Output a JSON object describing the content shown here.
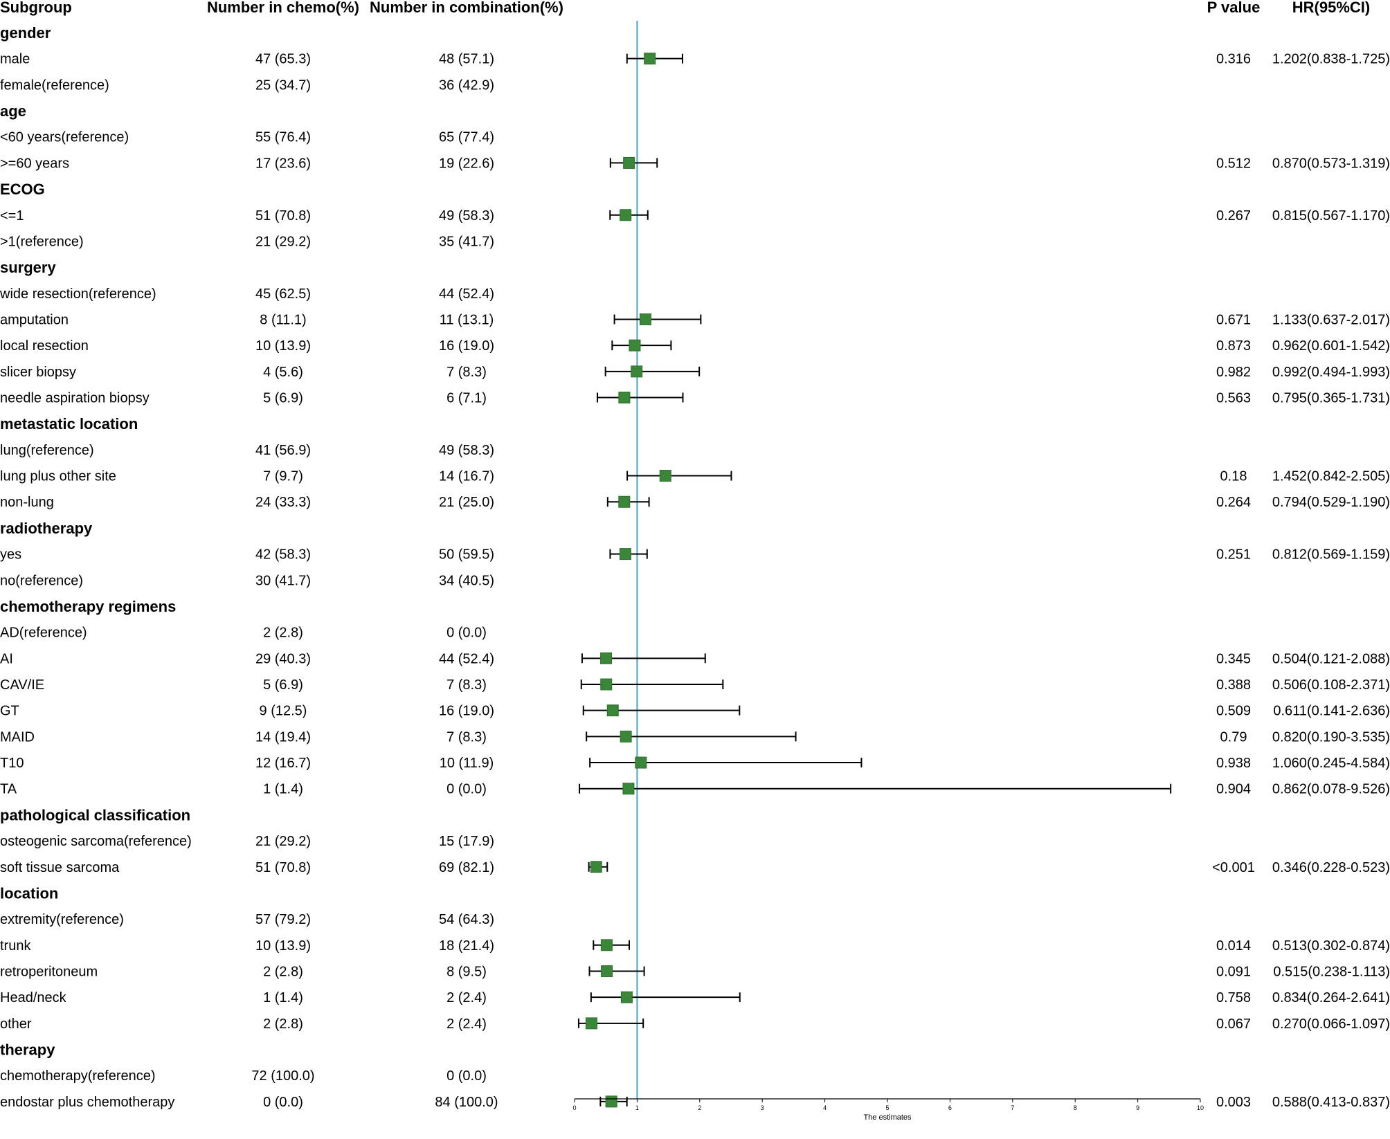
{
  "chart_data": {
    "type": "forest",
    "headers": {
      "subgroup": "Subgroup",
      "chemo": "Number in chemo(%)",
      "combination": "Number in combination(%)",
      "pvalue": "P value",
      "hr": "HR(95%CI)"
    },
    "xlabel": "The estimates",
    "xlim": [
      0,
      10
    ],
    "xticks": [
      0,
      1,
      2,
      3,
      4,
      5,
      6,
      7,
      8,
      9,
      10
    ],
    "reference_line": 1,
    "colors": {
      "marker": "#3a873a",
      "marker_edge": "#2f6e2f",
      "reference_line": "#4aa3c7",
      "whisker": "#000000"
    },
    "rows": [
      {
        "kind": "group",
        "label": "gender"
      },
      {
        "kind": "item",
        "label": "male",
        "chemo": "47 (65.3)",
        "comb": "48 (57.1)",
        "p": "0.316",
        "hr_text": "1.202(0.838-1.725)",
        "hr": 1.202,
        "lo": 0.838,
        "hi": 1.725
      },
      {
        "kind": "item",
        "label": "female(reference)",
        "chemo": "25 (34.7)",
        "comb": "36 (42.9)"
      },
      {
        "kind": "group",
        "label": "age"
      },
      {
        "kind": "item",
        "label": "<60 years(reference)",
        "chemo": "55 (76.4)",
        "comb": "65 (77.4)"
      },
      {
        "kind": "item",
        "label": ">=60 years",
        "chemo": "17 (23.6)",
        "comb": "19 (22.6)",
        "p": "0.512",
        "hr_text": "0.870(0.573-1.319)",
        "hr": 0.87,
        "lo": 0.573,
        "hi": 1.319
      },
      {
        "kind": "group",
        "label": "ECOG"
      },
      {
        "kind": "item",
        "label": "<=1",
        "chemo": "51 (70.8)",
        "comb": "49 (58.3)",
        "p": "0.267",
        "hr_text": "0.815(0.567-1.170)",
        "hr": 0.815,
        "lo": 0.567,
        "hi": 1.17
      },
      {
        "kind": "item",
        "label": ">1(reference)",
        "chemo": "21 (29.2)",
        "comb": "35 (41.7)"
      },
      {
        "kind": "group",
        "label": "surgery"
      },
      {
        "kind": "item",
        "label": "wide resection(reference)",
        "chemo": "45 (62.5)",
        "comb": "44 (52.4)"
      },
      {
        "kind": "item",
        "label": "amputation",
        "chemo": "8 (11.1)",
        "comb": "11 (13.1)",
        "p": "0.671",
        "hr_text": "1.133(0.637-2.017)",
        "hr": 1.133,
        "lo": 0.637,
        "hi": 2.017
      },
      {
        "kind": "item",
        "label": "local resection",
        "chemo": "10 (13.9)",
        "comb": "16 (19.0)",
        "p": "0.873",
        "hr_text": "0.962(0.601-1.542)",
        "hr": 0.962,
        "lo": 0.601,
        "hi": 1.542
      },
      {
        "kind": "item",
        "label": "slicer biopsy",
        "chemo": "4 (5.6)",
        "comb": "7 (8.3)",
        "p": "0.982",
        "hr_text": "0.992(0.494-1.993)",
        "hr": 0.992,
        "lo": 0.494,
        "hi": 1.993
      },
      {
        "kind": "item",
        "label": "needle aspiration biopsy",
        "chemo": "5 (6.9)",
        "comb": "6 (7.1)",
        "p": "0.563",
        "hr_text": "0.795(0.365-1.731)",
        "hr": 0.795,
        "lo": 0.365,
        "hi": 1.731
      },
      {
        "kind": "group",
        "label": "metastatic location"
      },
      {
        "kind": "item",
        "label": "lung(reference)",
        "chemo": "41 (56.9)",
        "comb": "49 (58.3)"
      },
      {
        "kind": "item",
        "label": "lung plus other site",
        "chemo": "7 (9.7)",
        "comb": "14 (16.7)",
        "p": "0.18",
        "hr_text": "1.452(0.842-2.505)",
        "hr": 1.452,
        "lo": 0.842,
        "hi": 2.505
      },
      {
        "kind": "item",
        "label": "non-lung",
        "chemo": "24 (33.3)",
        "comb": "21 (25.0)",
        "p": "0.264",
        "hr_text": "0.794(0.529-1.190)",
        "hr": 0.794,
        "lo": 0.529,
        "hi": 1.19
      },
      {
        "kind": "group",
        "label": "radiotherapy"
      },
      {
        "kind": "item",
        "label": "yes",
        "chemo": "42 (58.3)",
        "comb": "50 (59.5)",
        "p": "0.251",
        "hr_text": "0.812(0.569-1.159)",
        "hr": 0.812,
        "lo": 0.569,
        "hi": 1.159
      },
      {
        "kind": "item",
        "label": "no(reference)",
        "chemo": "30 (41.7)",
        "comb": "34 (40.5)"
      },
      {
        "kind": "group",
        "label": "chemotherapy regimens"
      },
      {
        "kind": "item",
        "label": "AD(reference)",
        "chemo": "2 (2.8)",
        "comb": "0 (0.0)"
      },
      {
        "kind": "item",
        "label": "AI",
        "chemo": "29 (40.3)",
        "comb": "44 (52.4)",
        "p": "0.345",
        "hr_text": "0.504(0.121-2.088)",
        "hr": 0.504,
        "lo": 0.121,
        "hi": 2.088
      },
      {
        "kind": "item",
        "label": "CAV/IE",
        "chemo": "5 (6.9)",
        "comb": "7 (8.3)",
        "p": "0.388",
        "hr_text": "0.506(0.108-2.371)",
        "hr": 0.506,
        "lo": 0.108,
        "hi": 2.371
      },
      {
        "kind": "item",
        "label": "GT",
        "chemo": "9 (12.5)",
        "comb": "16 (19.0)",
        "p": "0.509",
        "hr_text": "0.611(0.141-2.636)",
        "hr": 0.611,
        "lo": 0.141,
        "hi": 2.636
      },
      {
        "kind": "item",
        "label": "MAID",
        "chemo": "14 (19.4)",
        "comb": "7 (8.3)",
        "p": "0.79",
        "hr_text": "0.820(0.190-3.535)",
        "hr": 0.82,
        "lo": 0.19,
        "hi": 3.535
      },
      {
        "kind": "item",
        "label": "T10",
        "chemo": "12 (16.7)",
        "comb": "10 (11.9)",
        "p": "0.938",
        "hr_text": "1.060(0.245-4.584)",
        "hr": 1.06,
        "lo": 0.245,
        "hi": 4.584
      },
      {
        "kind": "item",
        "label": "TA",
        "chemo": "1 (1.4)",
        "comb": "0 (0.0)",
        "p": "0.904",
        "hr_text": "0.862(0.078-9.526)",
        "hr": 0.862,
        "lo": 0.078,
        "hi": 9.526
      },
      {
        "kind": "group",
        "label": "pathological classification"
      },
      {
        "kind": "item",
        "label": "osteogenic sarcoma(reference)",
        "chemo": "21 (29.2)",
        "comb": "15 (17.9)"
      },
      {
        "kind": "item",
        "label": "soft tissue sarcoma",
        "chemo": "51 (70.8)",
        "comb": "69 (82.1)",
        "p": "<0.001",
        "hr_text": "0.346(0.228-0.523)",
        "hr": 0.346,
        "lo": 0.228,
        "hi": 0.523
      },
      {
        "kind": "group",
        "label": "location"
      },
      {
        "kind": "item",
        "label": "extremity(reference)",
        "chemo": "57 (79.2)",
        "comb": "54 (64.3)"
      },
      {
        "kind": "item",
        "label": "trunk",
        "chemo": "10 (13.9)",
        "comb": "18 (21.4)",
        "p": "0.014",
        "hr_text": "0.513(0.302-0.874)",
        "hr": 0.513,
        "lo": 0.302,
        "hi": 0.874
      },
      {
        "kind": "item",
        "label": "retroperitoneum",
        "chemo": "2 (2.8)",
        "comb": "8 (9.5)",
        "p": "0.091",
        "hr_text": "0.515(0.238-1.113)",
        "hr": 0.515,
        "lo": 0.238,
        "hi": 1.113
      },
      {
        "kind": "item",
        "label": "Head/neck",
        "chemo": "1 (1.4)",
        "comb": "2 (2.4)",
        "p": "0.758",
        "hr_text": "0.834(0.264-2.641)",
        "hr": 0.834,
        "lo": 0.264,
        "hi": 2.641
      },
      {
        "kind": "item",
        "label": "other",
        "chemo": "2 (2.8)",
        "comb": "2 (2.4)",
        "p": "0.067",
        "hr_text": "0.270(0.066-1.097)",
        "hr": 0.27,
        "lo": 0.066,
        "hi": 1.097
      },
      {
        "kind": "group",
        "label": "therapy"
      },
      {
        "kind": "item",
        "label": "chemotherapy(reference)",
        "chemo": "72 (100.0)",
        "comb": "0 (0.0)"
      },
      {
        "kind": "item",
        "label": "endostar plus chemotherapy",
        "chemo": "0 (0.0)",
        "comb": "84 (100.0)",
        "p": "0.003",
        "hr_text": "0.588(0.413-0.837)",
        "hr": 0.588,
        "lo": 0.413,
        "hi": 0.837
      }
    ]
  }
}
